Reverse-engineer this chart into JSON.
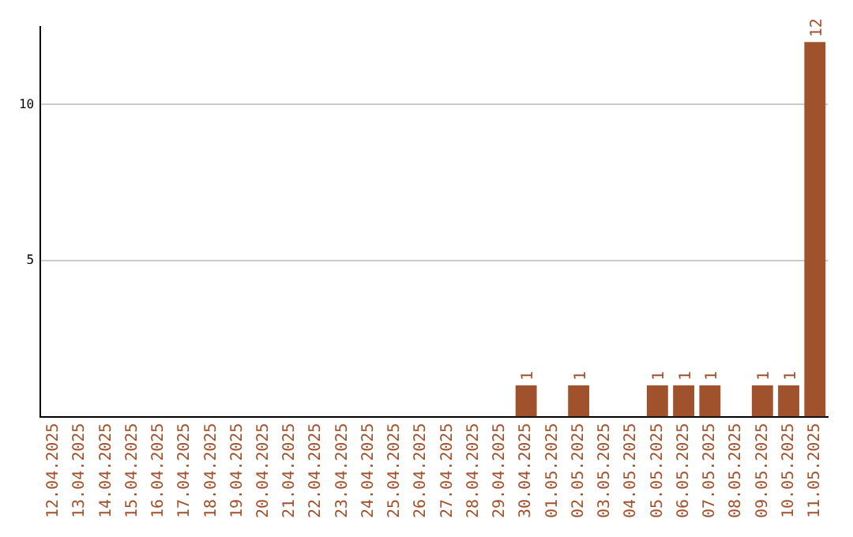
{
  "chart_data": {
    "type": "bar",
    "categories": [
      "12.04.2025",
      "13.04.2025",
      "14.04.2025",
      "15.04.2025",
      "16.04.2025",
      "17.04.2025",
      "18.04.2025",
      "19.04.2025",
      "20.04.2025",
      "21.04.2025",
      "22.04.2025",
      "23.04.2025",
      "24.04.2025",
      "25.04.2025",
      "26.04.2025",
      "27.04.2025",
      "28.04.2025",
      "29.04.2025",
      "30.04.2025",
      "01.05.2025",
      "02.05.2025",
      "03.05.2025",
      "04.05.2025",
      "05.05.2025",
      "06.05.2025",
      "07.05.2025",
      "08.05.2025",
      "09.05.2025",
      "10.05.2025",
      "11.05.2025"
    ],
    "values": [
      0,
      0,
      0,
      0,
      0,
      0,
      0,
      0,
      0,
      0,
      0,
      0,
      0,
      0,
      0,
      0,
      0,
      0,
      1,
      0,
      1,
      0,
      0,
      1,
      1,
      1,
      0,
      1,
      1,
      12
    ],
    "value_labels": [
      null,
      null,
      null,
      null,
      null,
      null,
      null,
      null,
      null,
      null,
      null,
      null,
      null,
      null,
      null,
      null,
      null,
      null,
      "1",
      null,
      "1",
      null,
      null,
      "1",
      "1",
      "1",
      null,
      "1",
      "1",
      "12"
    ],
    "color": "#a0522d",
    "ylim": [
      0,
      12.5
    ],
    "yticks": [
      5,
      10
    ],
    "grid": "y",
    "legend": false
  }
}
